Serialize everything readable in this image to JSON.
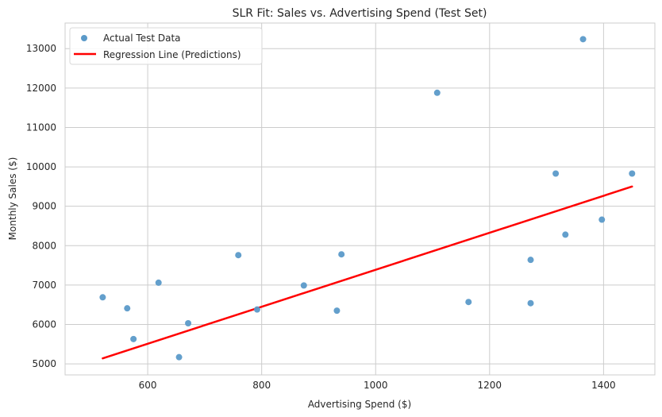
{
  "chart_data": {
    "type": "scatter",
    "title": "SLR Fit: Sales vs. Advertising Spend (Test Set)",
    "xlabel": "Advertising Spend ($)",
    "ylabel": "Monthly Sales ($)",
    "xlim": [
      455,
      1490
    ],
    "ylim": [
      4720,
      13650
    ],
    "xticks": [
      600,
      800,
      1000,
      1200,
      1400
    ],
    "yticks": [
      5000,
      6000,
      7000,
      8000,
      9000,
      10000,
      11000,
      12000,
      13000
    ],
    "grid": true,
    "legend_position": "top-left",
    "series": [
      {
        "name": "Actual Test Data",
        "kind": "scatter",
        "color": "#5b9ac9",
        "points": [
          {
            "x": 521,
            "y": 6690
          },
          {
            "x": 564,
            "y": 6410
          },
          {
            "x": 575,
            "y": 5630
          },
          {
            "x": 619,
            "y": 7060
          },
          {
            "x": 655,
            "y": 5170
          },
          {
            "x": 671,
            "y": 6030
          },
          {
            "x": 759,
            "y": 7760
          },
          {
            "x": 792,
            "y": 6380
          },
          {
            "x": 874,
            "y": 6990
          },
          {
            "x": 932,
            "y": 6350
          },
          {
            "x": 940,
            "y": 7780
          },
          {
            "x": 1108,
            "y": 11880
          },
          {
            "x": 1163,
            "y": 6570
          },
          {
            "x": 1272,
            "y": 7640
          },
          {
            "x": 1272,
            "y": 6540
          },
          {
            "x": 1316,
            "y": 9830
          },
          {
            "x": 1333,
            "y": 8280
          },
          {
            "x": 1364,
            "y": 13240
          },
          {
            "x": 1397,
            "y": 8660
          },
          {
            "x": 1450,
            "y": 9830
          }
        ]
      },
      {
        "name": "Regression Line (Predictions)",
        "kind": "line",
        "color": "#ff0000",
        "points": [
          {
            "x": 521,
            "y": 5140
          },
          {
            "x": 1450,
            "y": 9500
          }
        ]
      }
    ]
  }
}
